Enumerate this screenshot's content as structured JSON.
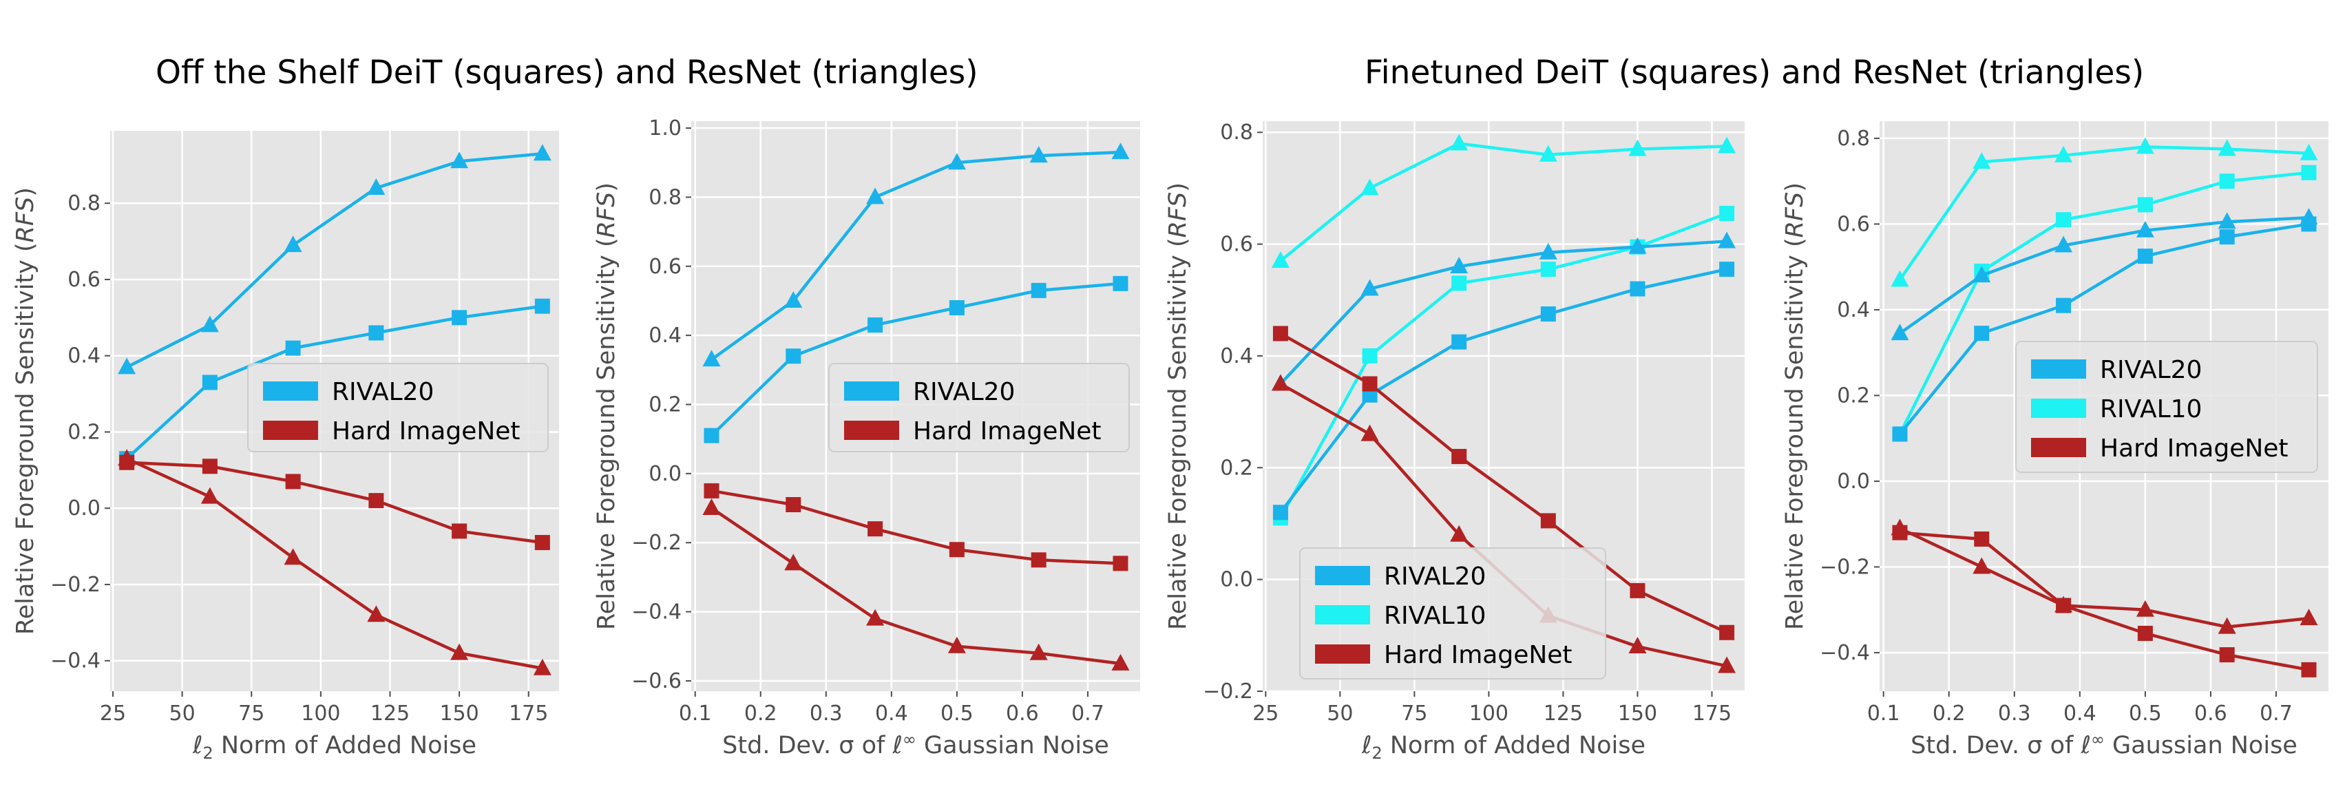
{
  "titles": {
    "left": "Off the Shelf DeiT (squares) and ResNet (triangles)",
    "right": "Finetuned DeiT (squares) and ResNet (triangles)"
  },
  "colors": {
    "rival20": "#1ab2eb",
    "rival10": "#1ef2f2",
    "hard_imagenet": "#b22222",
    "panel_bg": "#e5e5e5",
    "grid": "#ffffff"
  },
  "chart_data": [
    {
      "type": "line",
      "xlabel_parts": [
        "ℓ",
        "2",
        " Norm of Added Noise"
      ],
      "ylabel_parts": [
        "Relative Foreground Sensitivity (",
        "RFS",
        ")"
      ],
      "xlim": [
        24,
        186
      ],
      "ylim": [
        -0.48,
        0.99
      ],
      "xticks": [
        25,
        50,
        75,
        100,
        125,
        150,
        175
      ],
      "xtick_labels": [
        "25",
        "50",
        "75",
        "100",
        "125",
        "150",
        "175"
      ],
      "yticks": [
        -0.4,
        -0.2,
        0.0,
        0.2,
        0.4,
        0.6,
        0.8
      ],
      "ytick_labels": [
        "−0.4",
        "−0.2",
        "0.0",
        "0.2",
        "0.4",
        "0.6",
        "0.8"
      ],
      "legend": {
        "position": "center-right",
        "entries": [
          "RIVAL20",
          "Hard ImageNet"
        ]
      },
      "series": [
        {
          "name": "RIVAL20",
          "model": "DeiT",
          "marker": "square",
          "color": "#1ab2eb",
          "x": [
            30,
            60,
            90,
            120,
            150,
            180
          ],
          "y": [
            0.13,
            0.33,
            0.42,
            0.46,
            0.5,
            0.53
          ]
        },
        {
          "name": "RIVAL20",
          "model": "ResNet",
          "marker": "triangle",
          "color": "#1ab2eb",
          "x": [
            30,
            60,
            90,
            120,
            150,
            180
          ],
          "y": [
            0.37,
            0.48,
            0.69,
            0.84,
            0.91,
            0.93
          ]
        },
        {
          "name": "Hard ImageNet",
          "model": "DeiT",
          "marker": "square",
          "color": "#b22222",
          "x": [
            30,
            60,
            90,
            120,
            150,
            180
          ],
          "y": [
            0.12,
            0.11,
            0.07,
            0.02,
            -0.06,
            -0.09
          ]
        },
        {
          "name": "Hard ImageNet",
          "model": "ResNet",
          "marker": "triangle",
          "color": "#b22222",
          "x": [
            30,
            60,
            90,
            120,
            150,
            180
          ],
          "y": [
            0.13,
            0.03,
            -0.13,
            -0.28,
            -0.38,
            -0.42
          ]
        }
      ]
    },
    {
      "type": "line",
      "xlabel_parts": [
        "Std. Dev. σ of ℓ",
        "∞",
        " Gaussian Noise"
      ],
      "ylabel_parts": [
        "Relative Foreground Sensitivity (",
        "RFS",
        ")"
      ],
      "xlim": [
        0.094,
        0.78
      ],
      "ylim": [
        -0.63,
        1.02
      ],
      "xticks": [
        0.1,
        0.2,
        0.3,
        0.4,
        0.5,
        0.6,
        0.7
      ],
      "xtick_labels": [
        "0.1",
        "0.2",
        "0.3",
        "0.4",
        "0.5",
        "0.6",
        "0.7"
      ],
      "yticks": [
        -0.6,
        -0.4,
        -0.2,
        0.0,
        0.2,
        0.4,
        0.6,
        0.8,
        1.0
      ],
      "ytick_labels": [
        "−0.6",
        "−0.4",
        "−0.2",
        "0.0",
        "0.2",
        "0.4",
        "0.6",
        "0.8",
        "1.0"
      ],
      "legend": {
        "position": "center-right",
        "entries": [
          "RIVAL20",
          "Hard ImageNet"
        ]
      },
      "series": [
        {
          "name": "RIVAL20",
          "model": "DeiT",
          "marker": "square",
          "color": "#1ab2eb",
          "x": [
            0.125,
            0.25,
            0.375,
            0.5,
            0.625,
            0.75
          ],
          "y": [
            0.11,
            0.34,
            0.43,
            0.48,
            0.53,
            0.55
          ]
        },
        {
          "name": "RIVAL20",
          "model": "ResNet",
          "marker": "triangle",
          "color": "#1ab2eb",
          "x": [
            0.125,
            0.25,
            0.375,
            0.5,
            0.625,
            0.75
          ],
          "y": [
            0.33,
            0.5,
            0.8,
            0.9,
            0.92,
            0.93
          ]
        },
        {
          "name": "Hard ImageNet",
          "model": "DeiT",
          "marker": "square",
          "color": "#b22222",
          "x": [
            0.125,
            0.25,
            0.375,
            0.5,
            0.625,
            0.75
          ],
          "y": [
            -0.05,
            -0.09,
            -0.16,
            -0.22,
            -0.25,
            -0.26
          ]
        },
        {
          "name": "Hard ImageNet",
          "model": "ResNet",
          "marker": "triangle",
          "color": "#b22222",
          "x": [
            0.125,
            0.25,
            0.375,
            0.5,
            0.625,
            0.75
          ],
          "y": [
            -0.1,
            -0.26,
            -0.42,
            -0.5,
            -0.52,
            -0.55
          ]
        }
      ]
    },
    {
      "type": "line",
      "xlabel_parts": [
        "ℓ",
        "2",
        " Norm of Added Noise"
      ],
      "ylabel_parts": [
        "Relative Foreground Sensitivity (",
        "RFS",
        ")"
      ],
      "xlim": [
        24,
        186
      ],
      "ylim": [
        -0.2,
        0.82
      ],
      "xticks": [
        25,
        50,
        75,
        100,
        125,
        150,
        175
      ],
      "xtick_labels": [
        "25",
        "50",
        "75",
        "100",
        "125",
        "150",
        "175"
      ],
      "yticks": [
        -0.2,
        0.0,
        0.2,
        0.4,
        0.6,
        0.8
      ],
      "ytick_labels": [
        "−0.2",
        "0.0",
        "0.2",
        "0.4",
        "0.6",
        "0.8"
      ],
      "legend": {
        "position": "lower-left",
        "entries": [
          "RIVAL20",
          "RIVAL10",
          "Hard ImageNet"
        ]
      },
      "series": [
        {
          "name": "RIVAL10",
          "model": "ResNet",
          "marker": "triangle",
          "color": "#1ef2f2",
          "x": [
            30,
            60,
            90,
            120,
            150,
            180
          ],
          "y": [
            0.57,
            0.7,
            0.78,
            0.76,
            0.77,
            0.775
          ]
        },
        {
          "name": "RIVAL10",
          "model": "DeiT",
          "marker": "square",
          "color": "#1ef2f2",
          "x": [
            30,
            60,
            90,
            120,
            150,
            180
          ],
          "y": [
            0.11,
            0.4,
            0.53,
            0.555,
            0.595,
            0.655
          ]
        },
        {
          "name": "RIVAL20",
          "model": "ResNet",
          "marker": "triangle",
          "color": "#1ab2eb",
          "x": [
            30,
            60,
            90,
            120,
            150,
            180
          ],
          "y": [
            0.35,
            0.52,
            0.56,
            0.585,
            0.595,
            0.605
          ]
        },
        {
          "name": "RIVAL20",
          "model": "DeiT",
          "marker": "square",
          "color": "#1ab2eb",
          "x": [
            30,
            60,
            90,
            120,
            150,
            180
          ],
          "y": [
            0.12,
            0.33,
            0.425,
            0.475,
            0.52,
            0.555
          ]
        },
        {
          "name": "Hard ImageNet",
          "model": "DeiT",
          "marker": "square",
          "color": "#b22222",
          "x": [
            30,
            60,
            90,
            120,
            150,
            180
          ],
          "y": [
            0.44,
            0.35,
            0.22,
            0.105,
            -0.02,
            -0.095
          ]
        },
        {
          "name": "Hard ImageNet",
          "model": "ResNet",
          "marker": "triangle",
          "color": "#b22222",
          "x": [
            30,
            60,
            90,
            120,
            150,
            180
          ],
          "y": [
            0.35,
            0.26,
            0.08,
            -0.065,
            -0.12,
            -0.155
          ]
        }
      ]
    },
    {
      "type": "line",
      "xlabel_parts": [
        "Std. Dev. σ of ℓ",
        "∞",
        " Gaussian Noise"
      ],
      "ylabel_parts": [
        "Relative Foreground Sensitivity (",
        "RFS",
        ")"
      ],
      "xlim": [
        0.094,
        0.78
      ],
      "ylim": [
        -0.49,
        0.84
      ],
      "xticks": [
        0.1,
        0.2,
        0.3,
        0.4,
        0.5,
        0.6,
        0.7
      ],
      "xtick_labels": [
        "0.1",
        "0.2",
        "0.3",
        "0.4",
        "0.5",
        "0.6",
        "0.7"
      ],
      "yticks": [
        -0.4,
        -0.2,
        0.0,
        0.2,
        0.4,
        0.6,
        0.8
      ],
      "ytick_labels": [
        "−0.4",
        "−0.2",
        "0.0",
        "0.2",
        "0.4",
        "0.6",
        "0.8"
      ],
      "legend": {
        "position": "center-right",
        "entries": [
          "RIVAL20",
          "RIVAL10",
          "Hard ImageNet"
        ]
      },
      "series": [
        {
          "name": "RIVAL10",
          "model": "ResNet",
          "marker": "triangle",
          "color": "#1ef2f2",
          "x": [
            0.125,
            0.25,
            0.375,
            0.5,
            0.625,
            0.75
          ],
          "y": [
            0.47,
            0.745,
            0.76,
            0.78,
            0.775,
            0.765
          ]
        },
        {
          "name": "RIVAL10",
          "model": "DeiT",
          "marker": "square",
          "color": "#1ef2f2",
          "x": [
            0.125,
            0.25,
            0.375,
            0.5,
            0.625,
            0.75
          ],
          "y": [
            0.11,
            0.49,
            0.61,
            0.645,
            0.7,
            0.72
          ]
        },
        {
          "name": "RIVAL20",
          "model": "ResNet",
          "marker": "triangle",
          "color": "#1ab2eb",
          "x": [
            0.125,
            0.25,
            0.375,
            0.5,
            0.625,
            0.75
          ],
          "y": [
            0.345,
            0.48,
            0.55,
            0.585,
            0.605,
            0.615
          ]
        },
        {
          "name": "RIVAL20",
          "model": "DeiT",
          "marker": "square",
          "color": "#1ab2eb",
          "x": [
            0.125,
            0.25,
            0.375,
            0.5,
            0.625,
            0.75
          ],
          "y": [
            0.11,
            0.345,
            0.41,
            0.525,
            0.57,
            0.6
          ]
        },
        {
          "name": "Hard ImageNet",
          "model": "DeiT",
          "marker": "square",
          "color": "#b22222",
          "x": [
            0.125,
            0.25,
            0.375,
            0.5,
            0.625,
            0.75
          ],
          "y": [
            -0.12,
            -0.135,
            -0.29,
            -0.355,
            -0.405,
            -0.44
          ]
        },
        {
          "name": "Hard ImageNet",
          "model": "ResNet",
          "marker": "triangle",
          "color": "#b22222",
          "x": [
            0.125,
            0.25,
            0.375,
            0.5,
            0.625,
            0.75
          ],
          "y": [
            -0.11,
            -0.2,
            -0.29,
            -0.3,
            -0.34,
            -0.32
          ]
        }
      ]
    }
  ]
}
